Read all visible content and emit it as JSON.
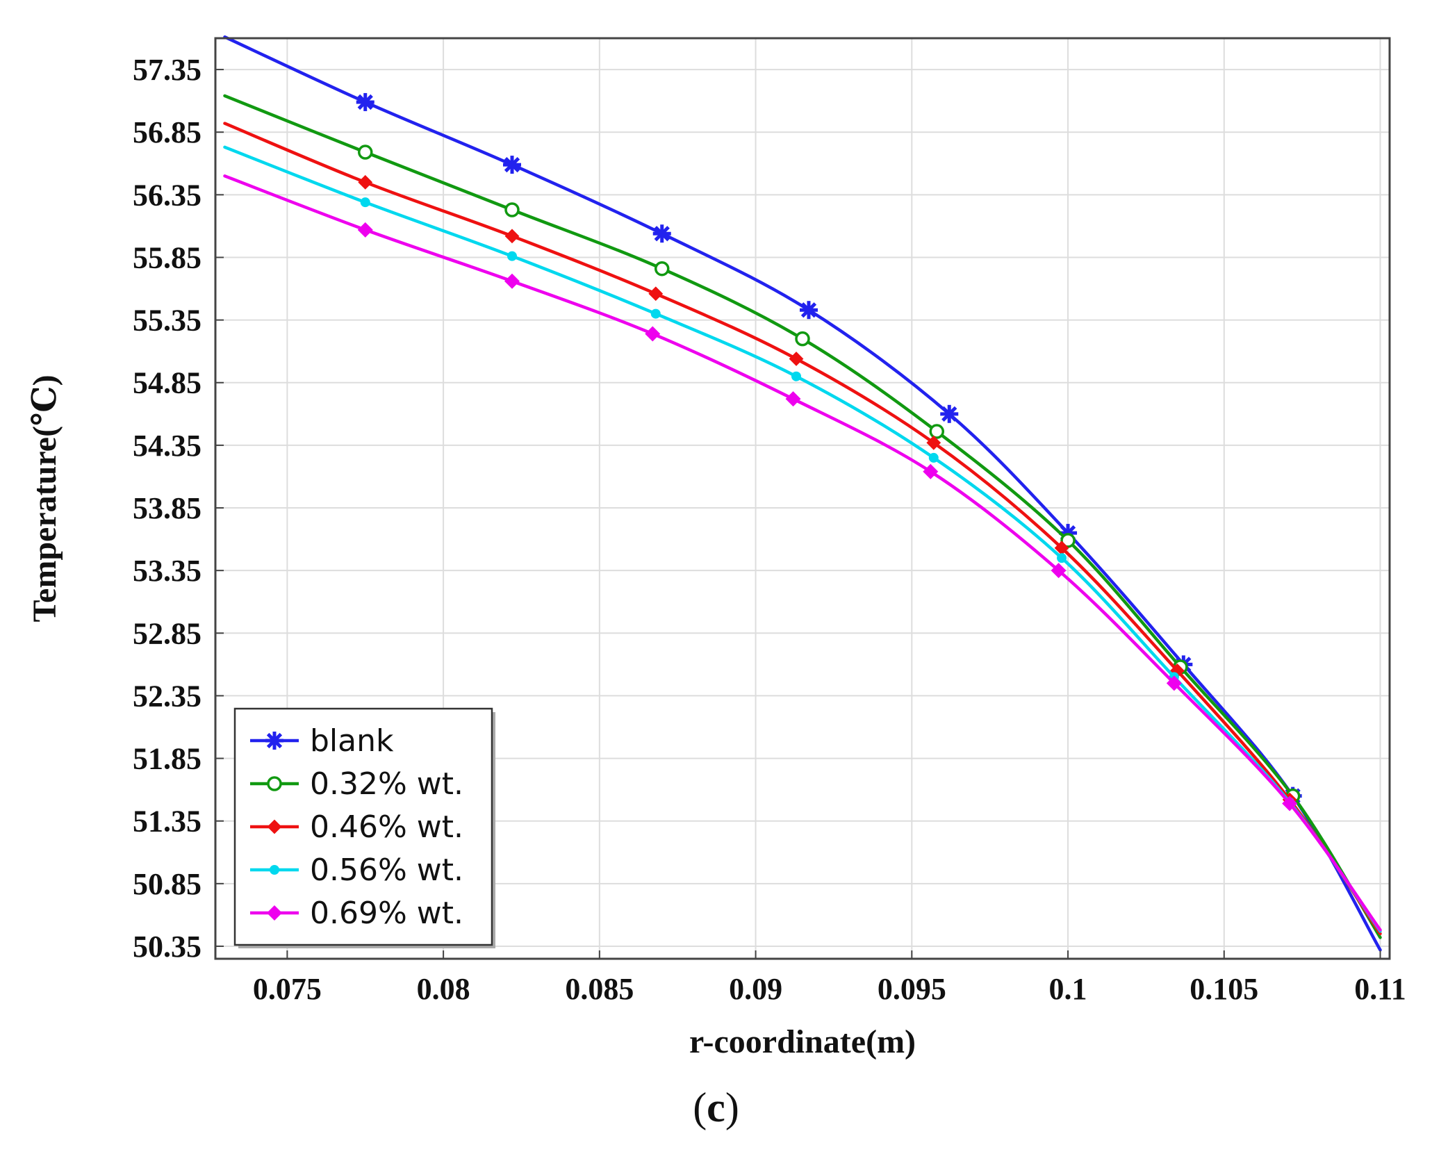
{
  "chart_data": {
    "type": "line",
    "xlabel": "r-coordinate(m)",
    "ylabel": "Temperature(℃)",
    "xlim": [
      0.0727,
      0.1103
    ],
    "ylim": [
      50.25,
      57.6
    ],
    "x_ticks": [
      0.075,
      0.08,
      0.085,
      0.09,
      0.095,
      0.1,
      0.105,
      0.11
    ],
    "x_tick_labels": [
      "0.075",
      "0.08",
      "0.085",
      "0.09",
      "0.095",
      "0.1",
      "0.105",
      "0.11"
    ],
    "y_ticks": [
      50.35,
      50.85,
      51.35,
      51.85,
      52.35,
      52.85,
      53.35,
      53.85,
      54.35,
      54.85,
      55.35,
      55.85,
      56.35,
      56.85,
      57.35
    ],
    "y_tick_labels": [
      "50.35",
      "50.85",
      "51.35",
      "51.85",
      "52.35",
      "52.85",
      "53.35",
      "53.85",
      "54.35",
      "54.85",
      "55.35",
      "55.85",
      "56.35",
      "56.85",
      "57.35"
    ],
    "grid": true,
    "legend_position": "bottom-left",
    "series": [
      {
        "name": "blank",
        "color": "#2222ee",
        "marker": "asterisk",
        "x": [
          0.073,
          0.0775,
          0.0822,
          0.087,
          0.0917,
          0.0962,
          0.1,
          0.1037,
          0.1072,
          0.11
        ],
        "y": [
          57.61,
          57.09,
          56.59,
          56.04,
          55.43,
          54.6,
          53.65,
          52.6,
          51.55,
          50.32
        ],
        "marker_x": [
          0.0775,
          0.0822,
          0.087,
          0.0917,
          0.0962,
          0.1,
          0.1037,
          0.1072
        ],
        "marker_y": [
          57.09,
          56.59,
          56.04,
          55.43,
          54.6,
          53.65,
          52.6,
          51.55
        ]
      },
      {
        "name": "0.32% wt.",
        "color": "#119911",
        "marker": "open-circle",
        "x": [
          0.073,
          0.0775,
          0.0822,
          0.087,
          0.0915,
          0.0958,
          0.1,
          0.1036,
          0.1072,
          0.11
        ],
        "y": [
          57.14,
          56.69,
          56.23,
          55.76,
          55.2,
          54.46,
          53.59,
          52.58,
          51.55,
          50.42
        ],
        "marker_x": [
          0.0775,
          0.0822,
          0.087,
          0.0915,
          0.0958,
          0.1,
          0.1036,
          0.1072
        ],
        "marker_y": [
          56.69,
          56.23,
          55.76,
          55.2,
          54.46,
          53.59,
          52.58,
          51.55
        ]
      },
      {
        "name": "0.46% wt.",
        "color": "#ee1111",
        "marker": "diamond",
        "x": [
          0.073,
          0.0775,
          0.0822,
          0.0868,
          0.0913,
          0.0957,
          0.0998,
          0.1035,
          0.1071,
          0.11
        ],
        "y": [
          56.92,
          56.45,
          56.02,
          55.56,
          55.04,
          54.37,
          53.53,
          52.55,
          51.52,
          50.45
        ],
        "marker_x": [
          0.0775,
          0.0822,
          0.0868,
          0.0913,
          0.0957,
          0.0998,
          0.1035,
          0.1071
        ],
        "marker_y": [
          56.45,
          56.02,
          55.56,
          55.04,
          54.37,
          53.53,
          52.55,
          51.52
        ]
      },
      {
        "name": "0.56% wt.",
        "color": "#00d8ee",
        "marker": "dot",
        "x": [
          0.073,
          0.0775,
          0.0822,
          0.0868,
          0.0913,
          0.0957,
          0.0998,
          0.1034,
          0.1071,
          0.11
        ],
        "y": [
          56.73,
          56.29,
          55.86,
          55.4,
          54.9,
          54.25,
          53.45,
          52.5,
          51.5,
          50.47
        ],
        "marker_x": [
          0.0775,
          0.0822,
          0.0868,
          0.0913,
          0.0957,
          0.0998,
          0.1034,
          0.1071
        ],
        "marker_y": [
          56.29,
          55.86,
          55.4,
          54.9,
          54.25,
          53.45,
          52.5,
          51.5
        ]
      },
      {
        "name": "0.69% wt.",
        "color": "#ee00ee",
        "marker": "filled-diamond",
        "x": [
          0.073,
          0.0775,
          0.0822,
          0.0867,
          0.0912,
          0.0956,
          0.0997,
          0.1034,
          0.1071,
          0.11
        ],
        "y": [
          56.5,
          56.07,
          55.66,
          55.24,
          54.72,
          54.14,
          53.35,
          52.45,
          51.49,
          50.48
        ],
        "marker_x": [
          0.0775,
          0.0822,
          0.0867,
          0.0912,
          0.0956,
          0.0997,
          0.1034,
          0.1071
        ],
        "marker_y": [
          56.07,
          55.66,
          55.24,
          54.72,
          54.14,
          53.35,
          52.45,
          51.49
        ]
      }
    ]
  },
  "caption": {
    "open": "(",
    "letter": "c",
    "close": ")"
  }
}
